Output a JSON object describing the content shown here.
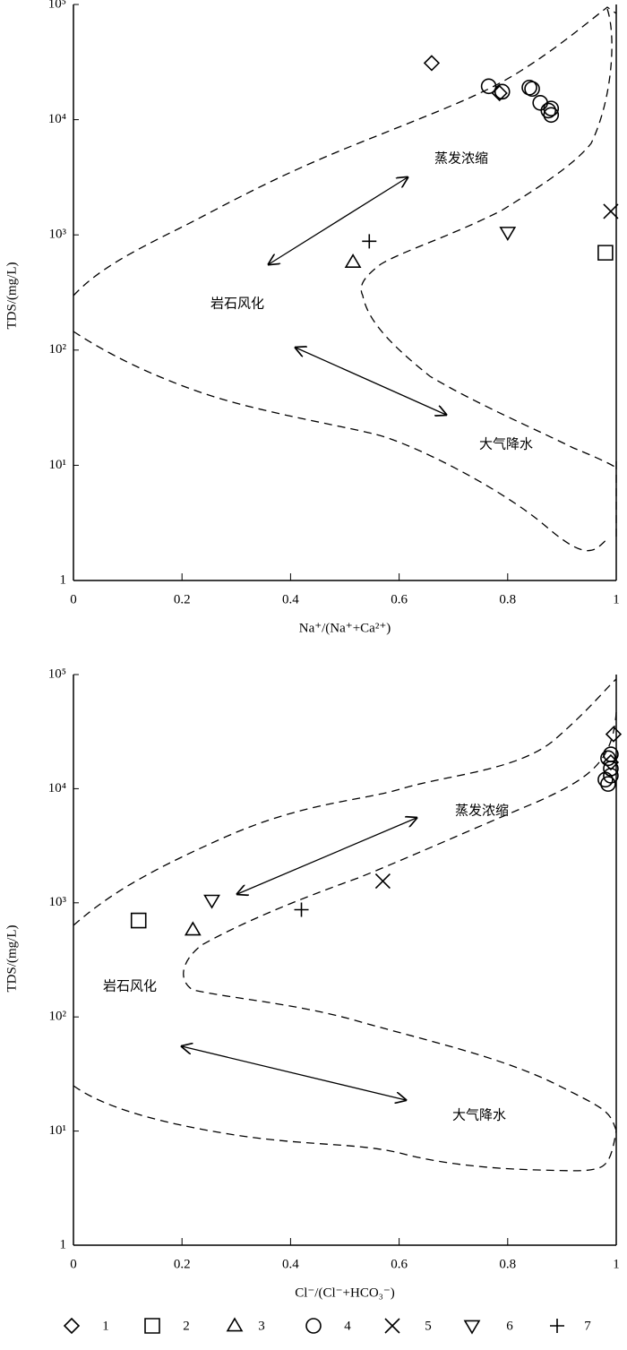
{
  "chart_data": [
    {
      "type": "scatter",
      "xlabel": "Na⁺/(Na⁺+Ca²⁺)",
      "ylabel": "TDS/(mg/L)",
      "xlim": [
        0,
        1
      ],
      "xticks": [
        0,
        0.2,
        0.4,
        0.6,
        0.8,
        1
      ],
      "ylim": [
        1,
        100000
      ],
      "log_y": true,
      "yticks": [
        1,
        {
          "value": 10,
          "label": "10¹"
        },
        {
          "value": 100,
          "label": "10²"
        },
        {
          "value": 1000,
          "label": "10³"
        },
        {
          "value": 10000,
          "label": "10⁴"
        },
        {
          "value": 100000,
          "label": "10⁵"
        }
      ],
      "annotations": [
        "蒸发浓缩",
        "岩石风化",
        "大气降水"
      ],
      "series": [
        {
          "marker": "diamond",
          "color": "#000000",
          "x": [
            0.66,
            0.785
          ],
          "values": [
            31000,
            17000
          ]
        },
        {
          "marker": "square",
          "color": "#000000",
          "x": [
            0.98
          ],
          "values": [
            700
          ]
        },
        {
          "marker": "triangle-up",
          "color": "#000000",
          "x": [
            0.515
          ],
          "values": [
            580
          ]
        },
        {
          "marker": "circle",
          "color": "#000000",
          "x": [
            0.765,
            0.79,
            0.84,
            0.845,
            0.86,
            0.875,
            0.88,
            0.88
          ],
          "values": [
            19500,
            17500,
            19000,
            18500,
            14000,
            12000,
            11000,
            12500
          ]
        },
        {
          "marker": "cross",
          "color": "#000000",
          "x": [
            0.99
          ],
          "values": [
            1600
          ]
        },
        {
          "marker": "triangle-down",
          "color": "#000000",
          "x": [
            0.8
          ],
          "values": [
            1050
          ]
        },
        {
          "marker": "plus",
          "color": "#000000",
          "x": [
            0.545
          ],
          "values": [
            880
          ]
        }
      ]
    },
    {
      "type": "scatter",
      "xlabel": "Cl⁻/(Cl⁻+HCO₃⁻)",
      "ylabel": "TDS/(mg/L)",
      "xlim": [
        0,
        1
      ],
      "xticks": [
        0,
        0.2,
        0.4,
        0.6,
        0.8,
        1
      ],
      "ylim": [
        1,
        100000
      ],
      "log_y": true,
      "yticks": [
        1,
        {
          "value": 10,
          "label": "10¹"
        },
        {
          "value": 100,
          "label": "10²"
        },
        {
          "value": 1000,
          "label": "10³"
        },
        {
          "value": 10000,
          "label": "10⁴"
        },
        {
          "value": 100000,
          "label": "10⁵"
        }
      ],
      "annotations": [
        "蒸发浓缩",
        "岩石风化",
        "大气降水"
      ],
      "series": [
        {
          "name": "1",
          "marker": "diamond",
          "color": "#000000",
          "x": [
            0.995,
            0.99
          ],
          "values": [
            30000,
            17000
          ]
        },
        {
          "name": "2",
          "marker": "square",
          "color": "#000000",
          "x": [
            0.12
          ],
          "values": [
            700
          ]
        },
        {
          "name": "3",
          "marker": "triangle-up",
          "color": "#000000",
          "x": [
            0.22
          ],
          "values": [
            580
          ]
        },
        {
          "name": "4",
          "marker": "circle",
          "color": "#000000",
          "x": [
            0.99,
            0.985,
            0.99,
            0.98,
            0.985,
            0.99
          ],
          "values": [
            20000,
            18500,
            15000,
            12000,
            11000,
            13000
          ]
        },
        {
          "name": "5",
          "marker": "cross",
          "color": "#000000",
          "x": [
            0.57
          ],
          "values": [
            1550
          ]
        },
        {
          "name": "6",
          "marker": "triangle-down",
          "color": "#000000",
          "x": [
            0.255
          ],
          "values": [
            1050
          ]
        },
        {
          "name": "7",
          "marker": "plus",
          "color": "#000000",
          "x": [
            0.42
          ],
          "values": [
            870
          ]
        }
      ]
    }
  ]
}
